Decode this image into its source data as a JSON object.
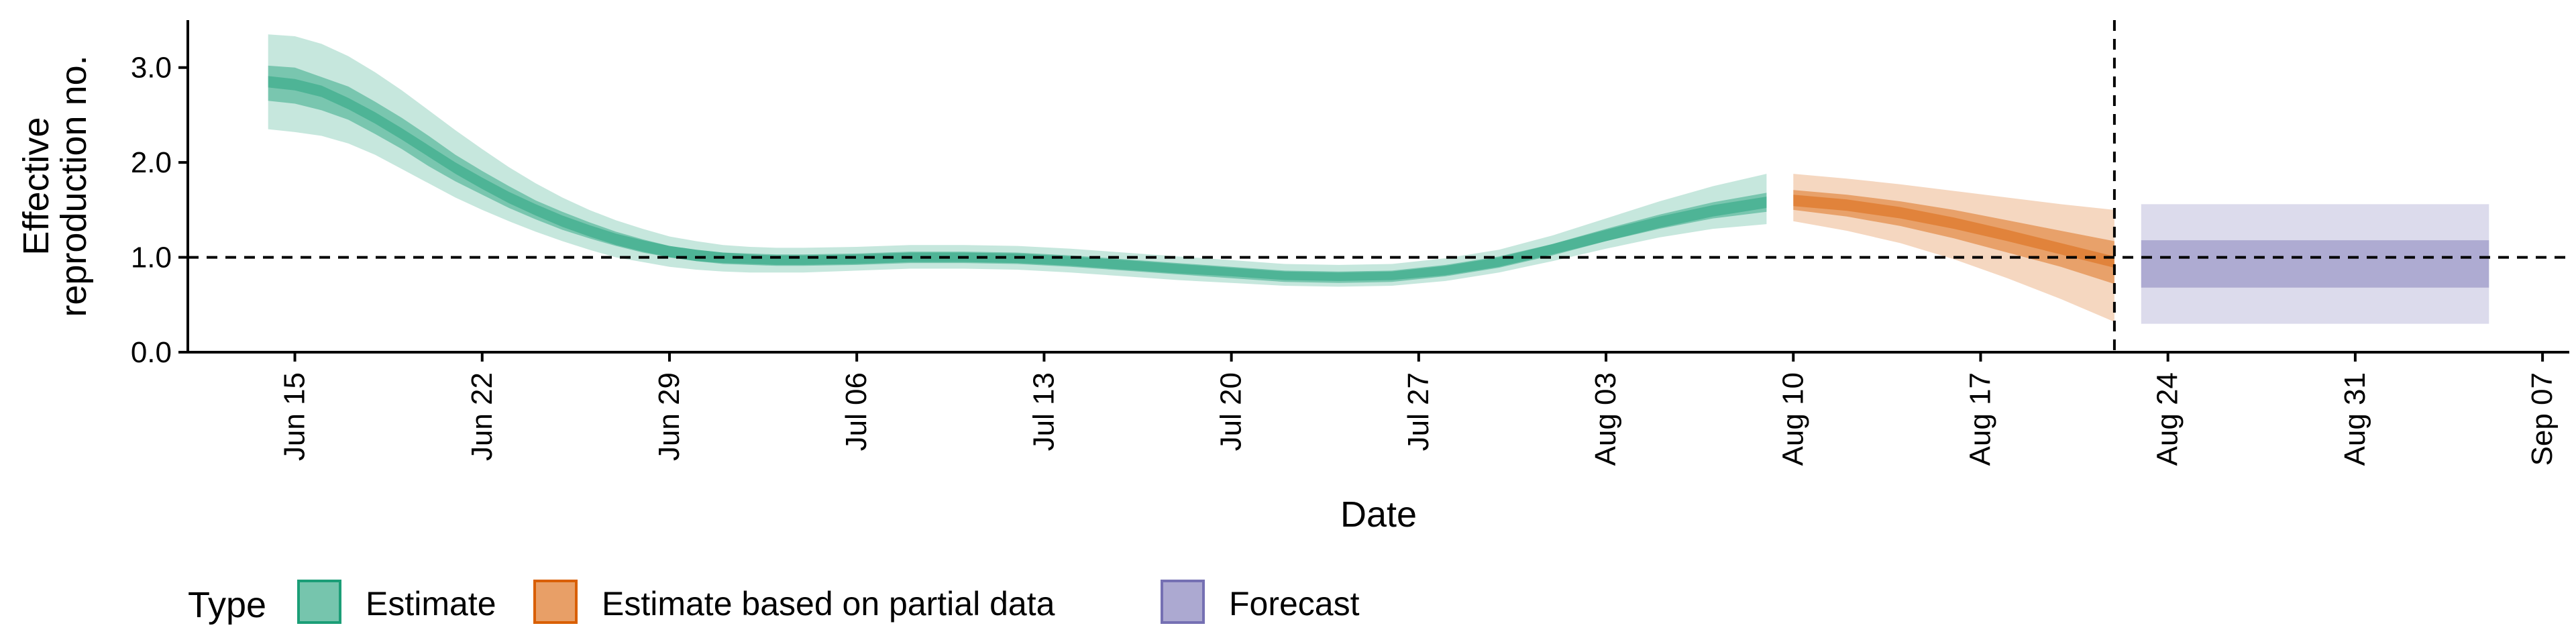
{
  "chart_data": {
    "type": "area",
    "xlabel": "Date",
    "ylabel": [
      "Effective",
      "reproduction no."
    ],
    "ylim": [
      0,
      3.5
    ],
    "xlim": [
      "2020-06-11",
      "2020-09-08"
    ],
    "y_ticks": [
      {
        "value": 0.0,
        "label": "0.0"
      },
      {
        "value": 1.0,
        "label": "1.0"
      },
      {
        "value": 2.0,
        "label": "2.0"
      },
      {
        "value": 3.0,
        "label": "3.0"
      }
    ],
    "x_ticks": [
      {
        "date": "2020-06-15",
        "label": "Jun 15"
      },
      {
        "date": "2020-06-22",
        "label": "Jun 22"
      },
      {
        "date": "2020-06-29",
        "label": "Jun 29"
      },
      {
        "date": "2020-07-06",
        "label": "Jul 06"
      },
      {
        "date": "2020-07-13",
        "label": "Jul 13"
      },
      {
        "date": "2020-07-20",
        "label": "Jul 20"
      },
      {
        "date": "2020-07-27",
        "label": "Jul 27"
      },
      {
        "date": "2020-08-03",
        "label": "Aug 03"
      },
      {
        "date": "2020-08-10",
        "label": "Aug 10"
      },
      {
        "date": "2020-08-17",
        "label": "Aug 17"
      },
      {
        "date": "2020-08-24",
        "label": "Aug 24"
      },
      {
        "date": "2020-08-31",
        "label": "Aug 31"
      },
      {
        "date": "2020-09-07",
        "label": "Sep 07"
      }
    ],
    "reference_lines": [
      {
        "axis": "y",
        "value": 1.0,
        "style": "dashed"
      },
      {
        "axis": "x",
        "value": "2020-08-22",
        "style": "dashed"
      }
    ],
    "legend": {
      "title": "Type",
      "position": "bottom",
      "entries": [
        {
          "label": "Estimate",
          "color": "#1b9e77"
        },
        {
          "label": "Estimate based on partial data",
          "color": "#d95f02"
        },
        {
          "label": "Forecast",
          "color": "#7570b3"
        }
      ]
    },
    "series": [
      {
        "name": "Estimate",
        "color": "#1b9e77",
        "points": [
          {
            "date": "2020-06-14",
            "lo90": 2.35,
            "lo50": 2.65,
            "median": 2.85,
            "hi50": 3.02,
            "hi90": 3.35
          },
          {
            "date": "2020-06-15",
            "lo90": 2.32,
            "lo50": 2.62,
            "median": 2.82,
            "hi50": 3.0,
            "hi90": 3.33
          },
          {
            "date": "2020-06-16",
            "lo90": 2.28,
            "lo50": 2.55,
            "median": 2.75,
            "hi50": 2.9,
            "hi90": 3.25
          },
          {
            "date": "2020-06-17",
            "lo90": 2.2,
            "lo50": 2.45,
            "median": 2.62,
            "hi50": 2.8,
            "hi90": 3.12
          },
          {
            "date": "2020-06-18",
            "lo90": 2.08,
            "lo50": 2.3,
            "median": 2.47,
            "hi50": 2.64,
            "hi90": 2.95
          },
          {
            "date": "2020-06-19",
            "lo90": 1.93,
            "lo50": 2.14,
            "median": 2.3,
            "hi50": 2.47,
            "hi90": 2.76
          },
          {
            "date": "2020-06-20",
            "lo90": 1.78,
            "lo50": 1.96,
            "median": 2.12,
            "hi50": 2.28,
            "hi90": 2.55
          },
          {
            "date": "2020-06-21",
            "lo90": 1.63,
            "lo50": 1.8,
            "median": 1.94,
            "hi50": 2.08,
            "hi90": 2.34
          },
          {
            "date": "2020-06-22",
            "lo90": 1.5,
            "lo50": 1.66,
            "median": 1.78,
            "hi50": 1.91,
            "hi90": 2.14
          },
          {
            "date": "2020-06-23",
            "lo90": 1.38,
            "lo50": 1.52,
            "median": 1.63,
            "hi50": 1.75,
            "hi90": 1.95
          },
          {
            "date": "2020-06-24",
            "lo90": 1.27,
            "lo50": 1.4,
            "median": 1.5,
            "hi50": 1.6,
            "hi90": 1.78
          },
          {
            "date": "2020-06-25",
            "lo90": 1.17,
            "lo50": 1.29,
            "median": 1.38,
            "hi50": 1.48,
            "hi90": 1.63
          },
          {
            "date": "2020-06-26",
            "lo90": 1.08,
            "lo50": 1.2,
            "median": 1.28,
            "hi50": 1.37,
            "hi90": 1.5
          },
          {
            "date": "2020-06-27",
            "lo90": 1.0,
            "lo50": 1.12,
            "median": 1.19,
            "hi50": 1.27,
            "hi90": 1.39
          },
          {
            "date": "2020-06-28",
            "lo90": 0.95,
            "lo50": 1.05,
            "median": 1.12,
            "hi50": 1.19,
            "hi90": 1.3
          },
          {
            "date": "2020-06-29",
            "lo90": 0.9,
            "lo50": 1.0,
            "median": 1.06,
            "hi50": 1.12,
            "hi90": 1.22
          },
          {
            "date": "2020-06-30",
            "lo90": 0.87,
            "lo50": 0.96,
            "median": 1.02,
            "hi50": 1.08,
            "hi90": 1.17
          },
          {
            "date": "2020-07-01",
            "lo90": 0.85,
            "lo50": 0.94,
            "median": 0.99,
            "hi50": 1.05,
            "hi90": 1.13
          },
          {
            "date": "2020-07-02",
            "lo90": 0.84,
            "lo50": 0.93,
            "median": 0.98,
            "hi50": 1.03,
            "hi90": 1.11
          },
          {
            "date": "2020-07-03",
            "lo90": 0.84,
            "lo50": 0.92,
            "median": 0.97,
            "hi50": 1.02,
            "hi90": 1.1
          },
          {
            "date": "2020-07-04",
            "lo90": 0.84,
            "lo50": 0.92,
            "median": 0.97,
            "hi50": 1.02,
            "hi90": 1.1
          },
          {
            "date": "2020-07-06",
            "lo90": 0.86,
            "lo50": 0.93,
            "median": 0.98,
            "hi50": 1.03,
            "hi90": 1.11
          },
          {
            "date": "2020-07-08",
            "lo90": 0.88,
            "lo50": 0.95,
            "median": 1.0,
            "hi50": 1.05,
            "hi90": 1.13
          },
          {
            "date": "2020-07-10",
            "lo90": 0.88,
            "lo50": 0.95,
            "median": 1.0,
            "hi50": 1.05,
            "hi90": 1.13
          },
          {
            "date": "2020-07-12",
            "lo90": 0.87,
            "lo50": 0.94,
            "median": 0.99,
            "hi50": 1.04,
            "hi90": 1.12
          },
          {
            "date": "2020-07-14",
            "lo90": 0.84,
            "lo50": 0.91,
            "median": 0.96,
            "hi50": 1.01,
            "hi90": 1.09
          },
          {
            "date": "2020-07-16",
            "lo90": 0.8,
            "lo50": 0.87,
            "median": 0.92,
            "hi50": 0.97,
            "hi90": 1.05
          },
          {
            "date": "2020-07-18",
            "lo90": 0.76,
            "lo50": 0.83,
            "median": 0.88,
            "hi50": 0.93,
            "hi90": 1.01
          },
          {
            "date": "2020-07-20",
            "lo90": 0.73,
            "lo50": 0.8,
            "median": 0.84,
            "hi50": 0.89,
            "hi90": 0.97
          },
          {
            "date": "2020-07-22",
            "lo90": 0.7,
            "lo50": 0.76,
            "median": 0.8,
            "hi50": 0.85,
            "hi90": 0.93
          },
          {
            "date": "2020-07-24",
            "lo90": 0.69,
            "lo50": 0.75,
            "median": 0.79,
            "hi50": 0.84,
            "hi90": 0.92
          },
          {
            "date": "2020-07-26",
            "lo90": 0.7,
            "lo50": 0.76,
            "median": 0.8,
            "hi50": 0.85,
            "hi90": 0.93
          },
          {
            "date": "2020-07-28",
            "lo90": 0.75,
            "lo50": 0.81,
            "median": 0.86,
            "hi50": 0.91,
            "hi90": 0.99
          },
          {
            "date": "2020-07-30",
            "lo90": 0.84,
            "lo50": 0.9,
            "median": 0.95,
            "hi50": 1.0,
            "hi90": 1.08
          },
          {
            "date": "2020-08-01",
            "lo90": 0.96,
            "lo50": 1.03,
            "median": 1.08,
            "hi50": 1.14,
            "hi90": 1.23
          },
          {
            "date": "2020-08-03",
            "lo90": 1.09,
            "lo50": 1.17,
            "median": 1.23,
            "hi50": 1.3,
            "hi90": 1.41
          },
          {
            "date": "2020-08-05",
            "lo90": 1.21,
            "lo50": 1.3,
            "median": 1.37,
            "hi50": 1.45,
            "hi90": 1.59
          },
          {
            "date": "2020-08-07",
            "lo90": 1.3,
            "lo50": 1.41,
            "median": 1.49,
            "hi50": 1.58,
            "hi90": 1.75
          },
          {
            "date": "2020-08-09",
            "lo90": 1.35,
            "lo50": 1.48,
            "median": 1.58,
            "hi50": 1.68,
            "hi90": 1.88
          }
        ]
      },
      {
        "name": "Estimate based on partial data",
        "color": "#d95f02",
        "points": [
          {
            "date": "2020-08-10",
            "lo90": 1.38,
            "lo50": 1.5,
            "median": 1.6,
            "hi50": 1.71,
            "hi90": 1.88
          },
          {
            "date": "2020-08-12",
            "lo90": 1.28,
            "lo50": 1.43,
            "median": 1.55,
            "hi50": 1.66,
            "hi90": 1.83
          },
          {
            "date": "2020-08-14",
            "lo90": 1.15,
            "lo50": 1.33,
            "median": 1.47,
            "hi50": 1.59,
            "hi90": 1.77
          },
          {
            "date": "2020-08-16",
            "lo90": 0.98,
            "lo50": 1.2,
            "median": 1.36,
            "hi50": 1.5,
            "hi90": 1.7
          },
          {
            "date": "2020-08-18",
            "lo90": 0.78,
            "lo50": 1.05,
            "median": 1.23,
            "hi50": 1.39,
            "hi90": 1.63
          },
          {
            "date": "2020-08-20",
            "lo90": 0.56,
            "lo50": 0.9,
            "median": 1.09,
            "hi50": 1.28,
            "hi90": 1.56
          },
          {
            "date": "2020-08-22",
            "lo90": 0.32,
            "lo50": 0.72,
            "median": 0.95,
            "hi50": 1.17,
            "hi90": 1.5
          }
        ]
      },
      {
        "name": "Forecast",
        "color": "#7570b3",
        "points": [
          {
            "date": "2020-08-23",
            "lo90": 0.3,
            "lo50": 0.68,
            "median": 0.93,
            "hi50": 1.18,
            "hi90": 1.56
          },
          {
            "date": "2020-09-05",
            "lo90": 0.3,
            "lo50": 0.68,
            "median": 0.93,
            "hi50": 1.18,
            "hi90": 1.56
          }
        ]
      }
    ]
  }
}
